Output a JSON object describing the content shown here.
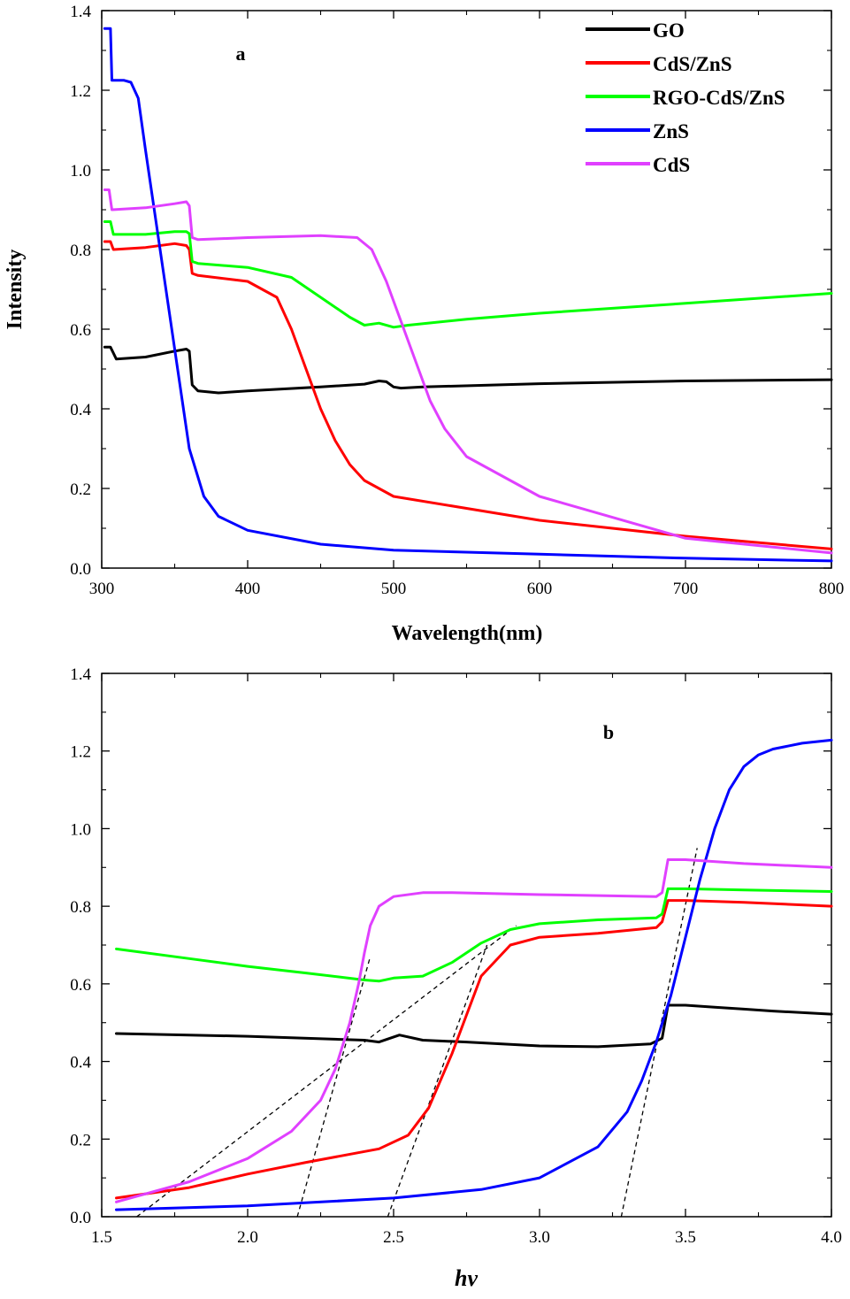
{
  "chart_data": [
    {
      "type": "line",
      "panel_label": "a",
      "xlabel": "Wavelength(nm)",
      "ylabel": "Intensity",
      "xlim": [
        300,
        800
      ],
      "ylim": [
        0.0,
        1.4
      ],
      "xticks": [
        300,
        400,
        500,
        600,
        700,
        800
      ],
      "yticks": [
        0.0,
        0.2,
        0.4,
        0.6,
        0.8,
        1.0,
        1.2,
        1.4
      ],
      "xtick_labels": [
        "300",
        "400",
        "500",
        "600",
        "700",
        "800"
      ],
      "ytick_labels": [
        "0.0",
        "0.2",
        "0.4",
        "0.6",
        "0.8",
        "1.0",
        "1.2",
        "1.4"
      ],
      "grid": false,
      "legend_position": "top-right",
      "series": [
        {
          "name": "GO",
          "color": "#000000",
          "x": [
            302,
            306,
            310,
            330,
            350,
            358,
            360,
            362,
            366,
            380,
            400,
            450,
            480,
            490,
            495,
            500,
            505,
            520,
            600,
            700,
            800
          ],
          "y": [
            0.555,
            0.555,
            0.525,
            0.53,
            0.545,
            0.55,
            0.545,
            0.46,
            0.445,
            0.44,
            0.445,
            0.455,
            0.462,
            0.47,
            0.468,
            0.455,
            0.452,
            0.455,
            0.463,
            0.47,
            0.473
          ]
        },
        {
          "name": "CdS/ZnS",
          "color": "#ff0000",
          "x": [
            302,
            306,
            308,
            330,
            350,
            358,
            360,
            362,
            366,
            400,
            420,
            430,
            440,
            450,
            460,
            470,
            480,
            500,
            550,
            600,
            700,
            800
          ],
          "y": [
            0.82,
            0.82,
            0.8,
            0.805,
            0.815,
            0.81,
            0.8,
            0.74,
            0.735,
            0.72,
            0.68,
            0.6,
            0.5,
            0.4,
            0.32,
            0.26,
            0.22,
            0.18,
            0.15,
            0.12,
            0.08,
            0.048
          ]
        },
        {
          "name": "RGO-CdS/ZnS",
          "color": "#00ff00",
          "x": [
            302,
            306,
            308,
            330,
            350,
            358,
            360,
            362,
            366,
            400,
            430,
            450,
            470,
            480,
            490,
            500,
            510,
            550,
            600,
            700,
            800
          ],
          "y": [
            0.87,
            0.87,
            0.838,
            0.838,
            0.845,
            0.845,
            0.84,
            0.77,
            0.765,
            0.755,
            0.73,
            0.68,
            0.63,
            0.61,
            0.615,
            0.605,
            0.61,
            0.625,
            0.64,
            0.665,
            0.69
          ]
        },
        {
          "name": "ZnS",
          "color": "#0000ff",
          "x": [
            302,
            306,
            307,
            315,
            320,
            325,
            330,
            340,
            350,
            360,
            370,
            380,
            400,
            450,
            500,
            600,
            700,
            800
          ],
          "y": [
            1.355,
            1.355,
            1.225,
            1.225,
            1.22,
            1.18,
            1.05,
            0.8,
            0.55,
            0.3,
            0.18,
            0.13,
            0.095,
            0.06,
            0.045,
            0.035,
            0.025,
            0.018
          ]
        },
        {
          "name": "CdS",
          "color": "#e040ff",
          "x": [
            302,
            305,
            307,
            330,
            350,
            358,
            360,
            362,
            366,
            400,
            450,
            475,
            485,
            495,
            505,
            515,
            525,
            535,
            550,
            600,
            700,
            800
          ],
          "y": [
            0.95,
            0.95,
            0.9,
            0.905,
            0.915,
            0.92,
            0.91,
            0.83,
            0.825,
            0.83,
            0.835,
            0.83,
            0.8,
            0.72,
            0.62,
            0.52,
            0.42,
            0.35,
            0.28,
            0.18,
            0.075,
            0.038
          ]
        }
      ]
    },
    {
      "type": "line",
      "panel_label": "b",
      "xlabel": "hv",
      "ylabel": "",
      "xlim": [
        1.5,
        4.0
      ],
      "ylim": [
        0.0,
        1.4
      ],
      "xticks": [
        1.5,
        2.0,
        2.5,
        3.0,
        3.5,
        4.0
      ],
      "yticks": [
        0.0,
        0.2,
        0.4,
        0.6,
        0.8,
        1.0,
        1.2,
        1.4
      ],
      "xtick_labels": [
        "1.5",
        "2.0",
        "2.5",
        "3.0",
        "3.5",
        "4.0"
      ],
      "ytick_labels": [
        "0.0",
        "0.2",
        "0.4",
        "0.6",
        "0.8",
        "1.0",
        "1.2",
        "1.4"
      ],
      "grid": false,
      "series": [
        {
          "name": "GO",
          "color": "#000000",
          "x": [
            1.55,
            2.0,
            2.4,
            2.45,
            2.52,
            2.6,
            2.75,
            3.0,
            3.2,
            3.38,
            3.42,
            3.44,
            3.5,
            3.6,
            3.7,
            3.8,
            4.0
          ],
          "y": [
            0.472,
            0.465,
            0.455,
            0.45,
            0.468,
            0.455,
            0.45,
            0.44,
            0.438,
            0.445,
            0.46,
            0.545,
            0.545,
            0.54,
            0.535,
            0.53,
            0.522
          ]
        },
        {
          "name": "CdS/ZnS",
          "color": "#ff0000",
          "x": [
            1.55,
            1.8,
            2.0,
            2.2,
            2.45,
            2.55,
            2.62,
            2.7,
            2.75,
            2.8,
            2.9,
            3.0,
            3.2,
            3.4,
            3.42,
            3.44,
            3.5,
            3.7,
            4.0
          ],
          "y": [
            0.048,
            0.075,
            0.11,
            0.14,
            0.175,
            0.21,
            0.28,
            0.42,
            0.52,
            0.62,
            0.7,
            0.72,
            0.73,
            0.745,
            0.76,
            0.815,
            0.815,
            0.81,
            0.8
          ]
        },
        {
          "name": "RGO-CdS/ZnS",
          "color": "#00ff00",
          "x": [
            1.55,
            1.8,
            2.0,
            2.2,
            2.4,
            2.45,
            2.5,
            2.6,
            2.7,
            2.8,
            2.9,
            3.0,
            3.2,
            3.4,
            3.42,
            3.44,
            3.5,
            3.7,
            4.0
          ],
          "y": [
            0.69,
            0.665,
            0.645,
            0.628,
            0.61,
            0.607,
            0.615,
            0.62,
            0.655,
            0.705,
            0.74,
            0.755,
            0.765,
            0.77,
            0.78,
            0.845,
            0.845,
            0.842,
            0.838
          ]
        },
        {
          "name": "ZnS",
          "color": "#0000ff",
          "x": [
            1.55,
            2.0,
            2.5,
            2.8,
            3.0,
            3.2,
            3.3,
            3.35,
            3.4,
            3.45,
            3.5,
            3.55,
            3.6,
            3.65,
            3.7,
            3.75,
            3.8,
            3.9,
            4.0
          ],
          "y": [
            0.018,
            0.028,
            0.048,
            0.07,
            0.1,
            0.18,
            0.27,
            0.35,
            0.45,
            0.57,
            0.72,
            0.87,
            1.0,
            1.1,
            1.16,
            1.19,
            1.205,
            1.22,
            1.228
          ]
        },
        {
          "name": "CdS",
          "color": "#e040ff",
          "x": [
            1.55,
            1.8,
            2.0,
            2.15,
            2.25,
            2.3,
            2.35,
            2.38,
            2.4,
            2.42,
            2.45,
            2.5,
            2.6,
            2.7,
            3.0,
            3.4,
            3.42,
            3.44,
            3.5,
            3.7,
            4.0
          ],
          "y": [
            0.038,
            0.09,
            0.15,
            0.22,
            0.3,
            0.38,
            0.5,
            0.6,
            0.68,
            0.75,
            0.8,
            0.825,
            0.835,
            0.835,
            0.83,
            0.825,
            0.835,
            0.92,
            0.92,
            0.91,
            0.9
          ]
        }
      ],
      "tangent_lines": [
        {
          "name": "tangent-cds",
          "x": [
            2.17,
            2.42
          ],
          "y": [
            0.0,
            0.67
          ]
        },
        {
          "name": "tangent-cds-zns",
          "x": [
            2.48,
            2.82
          ],
          "y": [
            0.0,
            0.7
          ]
        },
        {
          "name": "tangent-rgo",
          "x": [
            1.62,
            2.92
          ],
          "y": [
            0.0,
            0.75
          ]
        },
        {
          "name": "tangent-zns",
          "x": [
            3.28,
            3.54
          ],
          "y": [
            0.0,
            0.95
          ]
        }
      ]
    }
  ]
}
